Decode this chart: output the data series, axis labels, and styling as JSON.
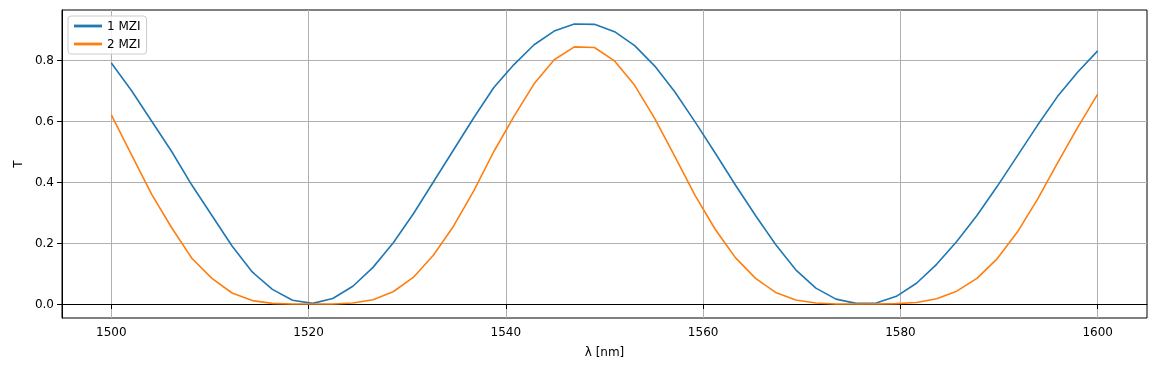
{
  "chart_data": {
    "type": "line",
    "xlabel": "λ [nm]",
    "ylabel": "T",
    "xlim": [
      1495,
      1605
    ],
    "xticks": [
      1500,
      1520,
      1540,
      1560,
      1580,
      1600
    ],
    "ylim": [
      -0.046,
      0.964
    ],
    "yticks": [
      {
        "value": 0,
        "label": "0.0"
      },
      0.2,
      0.4,
      0.6,
      0.8
    ],
    "grid": true,
    "legend": "top left",
    "marker": "none",
    "line_style": "solid",
    "x": [
      1500,
      1502.04,
      1504.08,
      1506.12,
      1508.16,
      1510.2,
      1512.24,
      1514.29,
      1516.33,
      1518.37,
      1520.41,
      1522.45,
      1524.49,
      1526.53,
      1528.57,
      1530.61,
      1532.65,
      1534.69,
      1536.73,
      1538.78,
      1540.82,
      1542.86,
      1544.9,
      1546.94,
      1548.98,
      1551.02,
      1553.06,
      1555.1,
      1557.14,
      1559.18,
      1561.22,
      1563.27,
      1565.31,
      1567.35,
      1569.39,
      1571.43,
      1573.47,
      1575.51,
      1577.55,
      1579.59,
      1581.63,
      1583.67,
      1585.71,
      1587.76,
      1589.8,
      1591.84,
      1593.88,
      1595.92,
      1597.96,
      1600
    ],
    "series": [
      {
        "name": "1 MZI",
        "color": "#1f77b4",
        "values": [
          0.79,
          0.7,
          0.6,
          0.5,
          0.39,
          0.29,
          0.19,
          0.105,
          0.048,
          0.012,
          0.002,
          0.018,
          0.058,
          0.12,
          0.2,
          0.295,
          0.4,
          0.505,
          0.61,
          0.71,
          0.785,
          0.85,
          0.895,
          0.918,
          0.917,
          0.893,
          0.847,
          0.78,
          0.695,
          0.597,
          0.495,
          0.39,
          0.29,
          0.195,
          0.112,
          0.052,
          0.016,
          0.002,
          0.003,
          0.025,
          0.068,
          0.13,
          0.205,
          0.29,
          0.385,
          0.485,
          0.585,
          0.68,
          0.76,
          0.83
        ]
      },
      {
        "name": "2 MZI",
        "color": "#ff7f0e",
        "values": [
          0.62,
          0.49,
          0.36,
          0.25,
          0.15,
          0.084,
          0.036,
          0.011,
          0.002,
          0,
          0,
          0,
          0.003,
          0.014,
          0.04,
          0.087,
          0.16,
          0.255,
          0.37,
          0.5,
          0.615,
          0.722,
          0.801,
          0.843,
          0.841,
          0.797,
          0.717,
          0.608,
          0.483,
          0.356,
          0.245,
          0.152,
          0.084,
          0.038,
          0.013,
          0.003,
          0,
          0,
          0,
          0.001,
          0.005,
          0.017,
          0.042,
          0.084,
          0.148,
          0.235,
          0.342,
          0.462,
          0.578,
          0.688
        ]
      }
    ]
  }
}
